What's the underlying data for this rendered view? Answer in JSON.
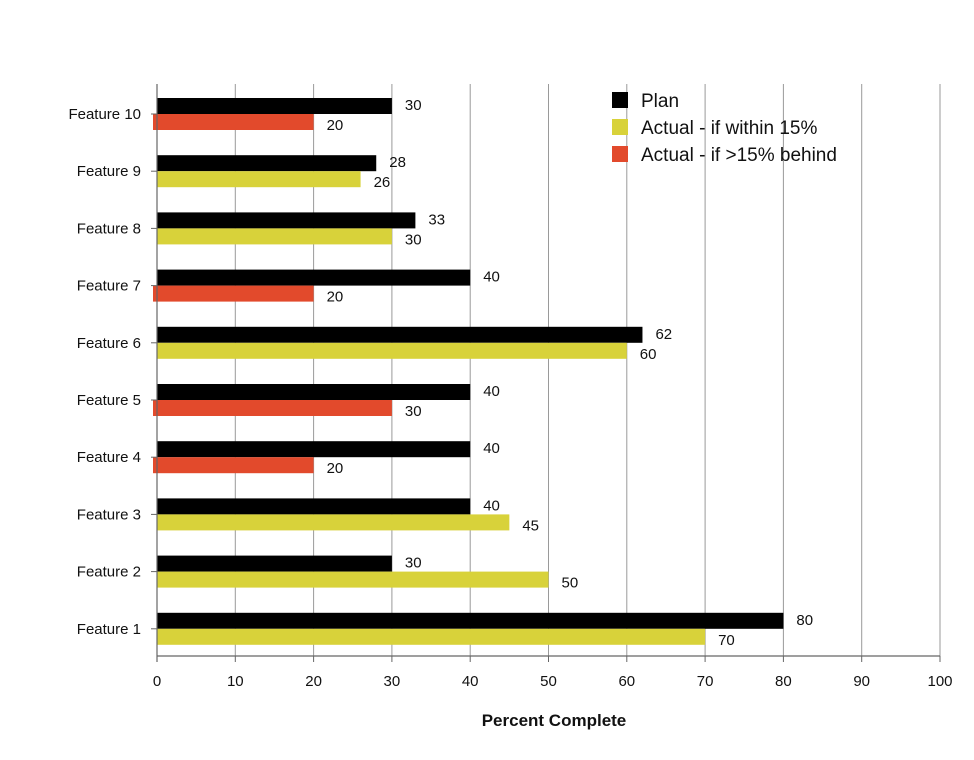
{
  "chart_data": {
    "type": "bar",
    "orientation": "horizontal",
    "categories": [
      "Feature 1",
      "Feature 2",
      "Feature 3",
      "Feature 4",
      "Feature 5",
      "Feature 6",
      "Feature 7",
      "Feature 8",
      "Feature 9",
      "Feature 10"
    ],
    "plan": {
      "name": "Plan",
      "color": "#000000",
      "values": [
        80,
        30,
        40,
        40,
        40,
        62,
        40,
        33,
        28,
        30
      ]
    },
    "actual": {
      "values": [
        70,
        50,
        45,
        20,
        30,
        60,
        20,
        30,
        26,
        20
      ],
      "status": [
        "within",
        "within",
        "within",
        "behind",
        "behind",
        "within",
        "behind",
        "within",
        "within",
        "behind"
      ]
    },
    "legend": [
      {
        "key": "plan",
        "label": "Plan",
        "color": "#000000"
      },
      {
        "key": "within",
        "label": "Actual - if within 15%",
        "color": "#d8d23a"
      },
      {
        "key": "behind",
        "label": "Actual - if  >15% behind",
        "color": "#e24a2c"
      }
    ],
    "xlabel": "Percent Complete",
    "xlim": [
      0,
      100
    ],
    "xticks": [
      0,
      10,
      20,
      30,
      40,
      50,
      60,
      70,
      80,
      90,
      100
    ],
    "grid": true,
    "legend_position": "top-right"
  }
}
